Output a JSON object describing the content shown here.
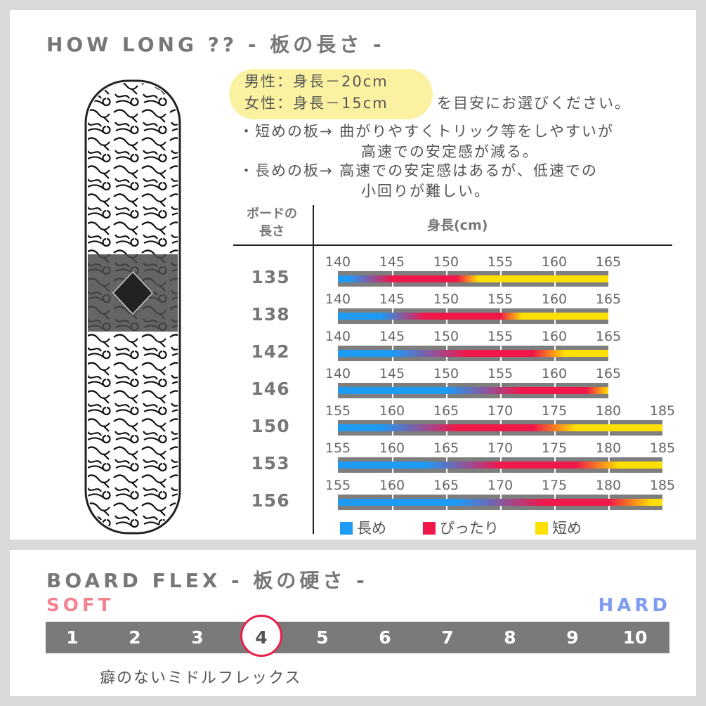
{
  "length_section": {
    "title": "HOW LONG ?? - 板の長さ -",
    "male": "男性：身長－20cm",
    "female": "女性：身長－15cm",
    "suffix": "を目安にお選びください。",
    "short_note_1": "・短めの板→ 曲がりやすくトリック等をしやすいが",
    "short_note_2": "高速での安定感が減る。",
    "long_note_1": "・長めの板→ 高速での安定感はあるが、低速での",
    "long_note_2": "小回りが難しい。",
    "col_board_1": "ボードの",
    "col_board_2": "長さ",
    "col_height": "身長(cm)"
  },
  "chart_data": {
    "type": "table",
    "colors": {
      "long": "#1e9bf5",
      "fit": "#f0174a",
      "short": "#ffe000",
      "track": "#7e7e7e"
    },
    "legend": [
      {
        "key": "long",
        "label": "長め"
      },
      {
        "key": "fit",
        "label": "ぴったり"
      },
      {
        "key": "short",
        "label": "短め"
      }
    ],
    "rows": [
      {
        "board": "135",
        "ticks": [
          "140",
          "145",
          "150",
          "155",
          "160",
          "165"
        ],
        "range": [
          140,
          165
        ],
        "long_until": 141,
        "fit": [
          145,
          151
        ],
        "short_from": 153
      },
      {
        "board": "138",
        "ticks": [
          "140",
          "145",
          "150",
          "155",
          "160",
          "165"
        ],
        "range": [
          140,
          165
        ],
        "long_until": 144,
        "fit": [
          148,
          155
        ],
        "short_from": 157
      },
      {
        "board": "142",
        "ticks": [
          "140",
          "145",
          "150",
          "155",
          "160",
          "165"
        ],
        "range": [
          140,
          165
        ],
        "long_until": 145,
        "fit": [
          152,
          158
        ],
        "short_from": 161
      },
      {
        "board": "146",
        "ticks": [
          "140",
          "145",
          "150",
          "155",
          "160",
          "165"
        ],
        "range": [
          140,
          165
        ],
        "long_until": 150,
        "fit": [
          157,
          163
        ],
        "short_from": 165
      },
      {
        "board": "150",
        "ticks": [
          "155",
          "160",
          "165",
          "170",
          "175",
          "180",
          "185"
        ],
        "range": [
          155,
          185
        ],
        "long_until": 159,
        "fit": [
          166,
          173
        ],
        "short_from": 177
      },
      {
        "board": "153",
        "ticks": [
          "155",
          "160",
          "165",
          "170",
          "175",
          "180",
          "185"
        ],
        "range": [
          155,
          185
        ],
        "long_until": 163,
        "fit": [
          170,
          177
        ],
        "short_from": 181
      },
      {
        "board": "156",
        "ticks": [
          "155",
          "160",
          "165",
          "170",
          "175",
          "180",
          "185"
        ],
        "range": [
          155,
          185
        ],
        "long_until": 166,
        "fit": [
          174,
          180
        ],
        "short_from": 184
      }
    ]
  },
  "flex_section": {
    "title": "BOARD FLEX - 板の硬さ -",
    "soft": "SOFT",
    "hard": "HARD",
    "soft_color": "#f2838f",
    "hard_color": "#7f9cf0",
    "scale": [
      "1",
      "2",
      "3",
      "4",
      "5",
      "6",
      "7",
      "8",
      "9",
      "10"
    ],
    "selected": 4,
    "description": "癖のないミドルフレックス"
  },
  "board_image": {
    "icon": "snowboard-graphic"
  }
}
